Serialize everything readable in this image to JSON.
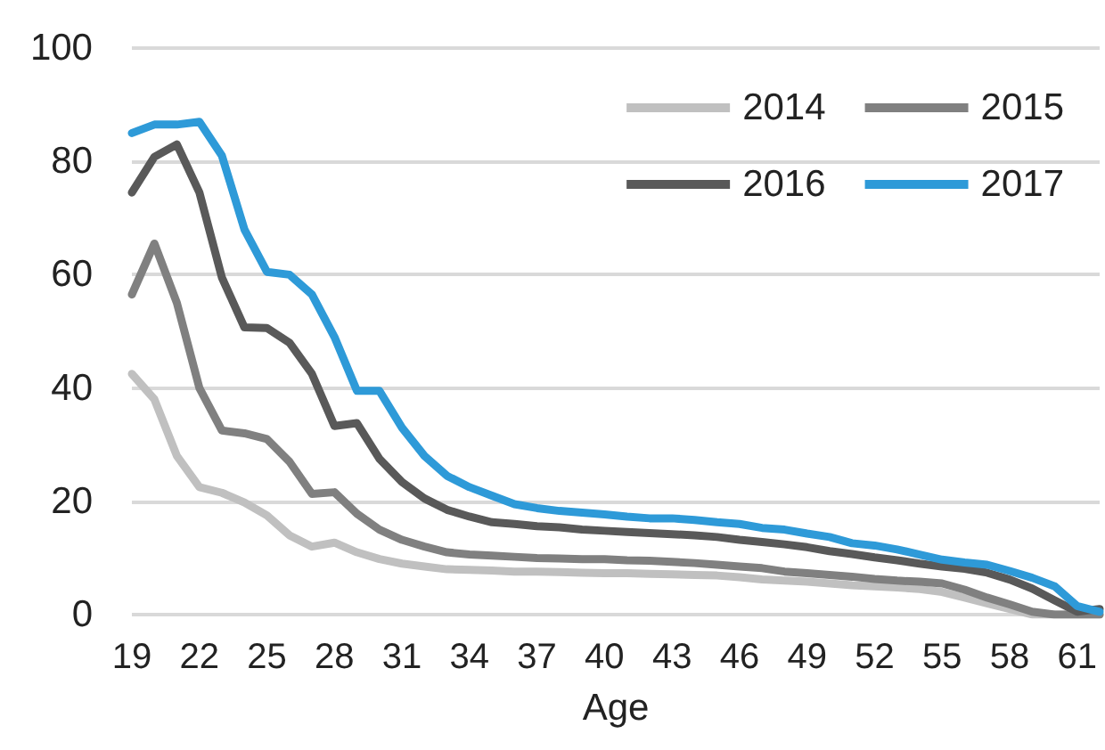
{
  "chart_data": {
    "type": "line",
    "xlabel": "Age",
    "categories": [
      "19",
      null,
      null,
      "22",
      null,
      null,
      "25",
      null,
      null,
      "28",
      null,
      null,
      "31",
      null,
      null,
      "34",
      null,
      null,
      "37",
      null,
      null,
      "40",
      null,
      null,
      "43",
      null,
      null,
      "46",
      null,
      null,
      "49",
      null,
      null,
      "52",
      null,
      null,
      "55",
      null,
      null,
      "58",
      null,
      null,
      "61",
      null
    ],
    "series": [
      {
        "name": "2014",
        "color": "#c0c0c0",
        "values": [
          42.5,
          38,
          28,
          22.5,
          21.5,
          19.8,
          17.5,
          14,
          12,
          12.7,
          11,
          9.8,
          9,
          8.5,
          8,
          7.9,
          7.8,
          7.6,
          7.6,
          7.5,
          7.4,
          7.3,
          7.3,
          7.2,
          7.1,
          7,
          6.9,
          6.6,
          6.2,
          6,
          5.8,
          5.5,
          5.2,
          5,
          4.8,
          4.5,
          4,
          3,
          2,
          1,
          0,
          0,
          0,
          0
        ]
      },
      {
        "name": "2015",
        "color": "#808080",
        "values": [
          56.5,
          65.5,
          55,
          40,
          32.5,
          32,
          31,
          27,
          21.3,
          21.6,
          17.8,
          15,
          13.2,
          12,
          11,
          10.6,
          10.4,
          10.2,
          10,
          9.9,
          9.8,
          9.8,
          9.6,
          9.5,
          9.3,
          9.1,
          8.8,
          8.5,
          8.2,
          7.6,
          7.3,
          7,
          6.7,
          6.3,
          6,
          5.8,
          5.5,
          4.4,
          3,
          1.8,
          0.5,
          0,
          0,
          0
        ]
      },
      {
        "name": "2016",
        "color": "#595959",
        "values": [
          74.5,
          80.8,
          83,
          74.5,
          59.5,
          50.7,
          50.6,
          48,
          42.5,
          33.3,
          33.8,
          27.5,
          23.4,
          20.5,
          18.5,
          17.3,
          16.3,
          16,
          15.6,
          15.4,
          15,
          14.8,
          14.6,
          14.4,
          14.2,
          14,
          13.7,
          13.2,
          12.8,
          12.4,
          11.9,
          11.2,
          10.7,
          10.1,
          9.6,
          9,
          8.5,
          8.1,
          7.4,
          6.2,
          4.6,
          2.5,
          0.5,
          1
        ]
      },
      {
        "name": "2017",
        "color": "#2e9ad8",
        "values": [
          85,
          86.5,
          86.5,
          87,
          81,
          68,
          60.5,
          60,
          56.5,
          49,
          39.5,
          39.5,
          33,
          28,
          24.5,
          22.5,
          21,
          19.5,
          18.8,
          18.3,
          18,
          17.7,
          17.3,
          17,
          17,
          16.7,
          16.3,
          16,
          15.3,
          15,
          14.3,
          13.7,
          12.6,
          12.2,
          11.5,
          10.6,
          9.7,
          9.2,
          8.8,
          7.7,
          6.5,
          5,
          1.5,
          0.5
        ]
      }
    ],
    "ylim": [
      0,
      100
    ],
    "yticks": [
      0,
      20,
      40,
      60,
      80,
      100
    ],
    "grid": "y",
    "legend": "top right",
    "marker": "none",
    "line_style": "solid"
  }
}
